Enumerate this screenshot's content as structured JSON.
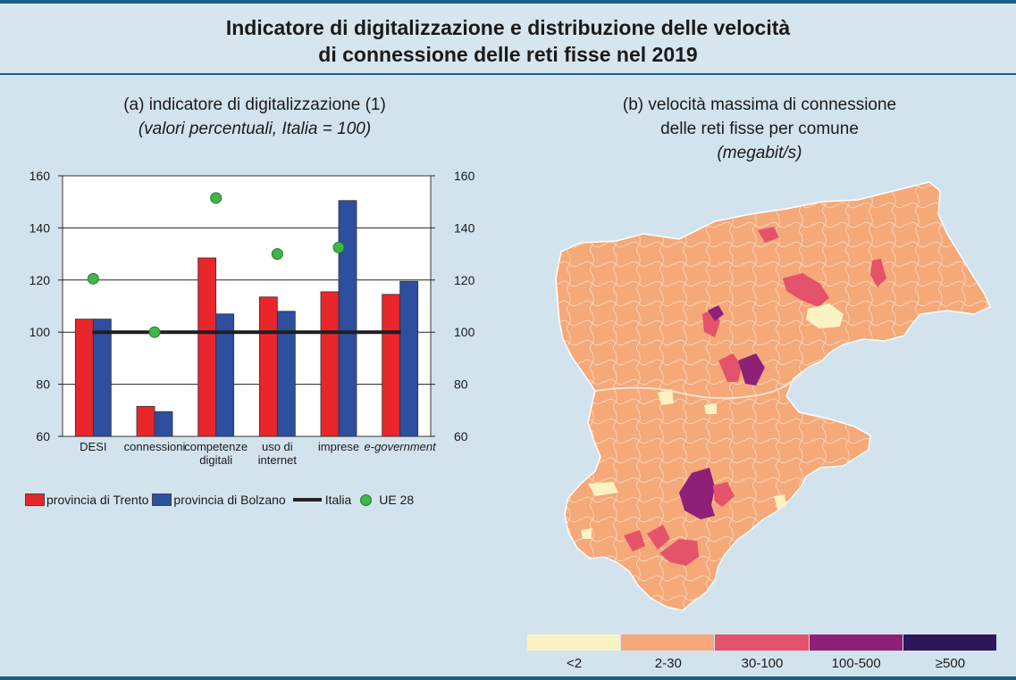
{
  "title": {
    "line1": "Indicatore di digitalizzazione e distribuzione delle velocità",
    "line2": "di connessione delle reti fisse nel 2019"
  },
  "panel_a": {
    "title": "(a) indicatore di digitalizzazione (1)",
    "subtitle": "(valori percentuali, Italia = 100)"
  },
  "panel_b": {
    "title_line1": "(b) velocità massima di connessione",
    "title_line2": "delle reti fisse per comune",
    "subtitle": "(megabit/s)"
  },
  "colors": {
    "trento": "#e8262c",
    "bolzano": "#2e4e9e",
    "italia": "#1e1e1e",
    "ue28": "#3fb54a",
    "map_lt2": "#fbf3c2",
    "map_2_30": "#f5a878",
    "map_30_100": "#e5536a",
    "map_100_500": "#8e2177",
    "map_ge500": "#2d1659"
  },
  "chart_data": {
    "type": "bar",
    "categories": [
      [
        "DESI"
      ],
      [
        "connessioni"
      ],
      [
        "competenze",
        "digitali"
      ],
      [
        "uso di",
        "internet"
      ],
      [
        "imprese"
      ],
      [
        "e-government"
      ]
    ],
    "series": [
      {
        "name": "provincia di Trento",
        "values": [
          105,
          71.5,
          128.5,
          113.5,
          115.5,
          114.5
        ]
      },
      {
        "name": "provincia di Bolzano",
        "values": [
          105,
          69.5,
          107,
          108,
          150.5,
          119.5
        ]
      }
    ],
    "reference_line": {
      "name": "Italia",
      "value": 100
    },
    "points": {
      "name": "UE 28",
      "values": [
        120.5,
        100,
        151.5,
        130,
        132.5,
        null
      ]
    },
    "ylim": [
      60,
      160
    ],
    "yticks": [
      60,
      80,
      100,
      120,
      140,
      160
    ],
    "grid": true,
    "legend": "bottom"
  },
  "map_legend": {
    "classes": [
      "<2",
      "2-30",
      "30-100",
      "100-500",
      "≥500"
    ]
  }
}
